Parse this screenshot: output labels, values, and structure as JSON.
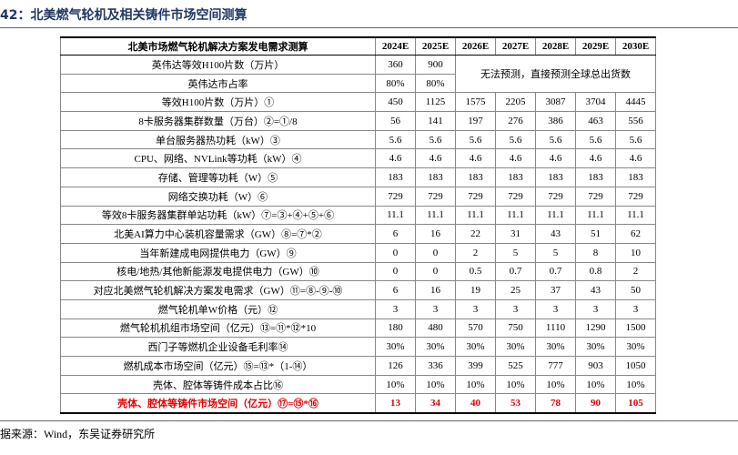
{
  "title": "42：北美燃气轮机及相关铸件市场空间测算",
  "table": {
    "header": [
      "北美市场燃气轮机解决方案发电需求测算",
      "2024E",
      "2025E",
      "2026E",
      "2027E",
      "2028E",
      "2029E",
      "2030E"
    ],
    "merged_note": "无法预测，直接预测全球总出货数",
    "rows": [
      [
        "英伟达等效H100片数（万片）",
        "360",
        "900"
      ],
      [
        "英伟达市占率",
        "80%",
        "80%"
      ],
      [
        "等效H100片数（万片）①",
        "450",
        "1125",
        "1575",
        "2205",
        "3087",
        "3704",
        "4445"
      ],
      [
        "8卡服务器集群数量（万台）②=①/8",
        "56",
        "141",
        "197",
        "276",
        "386",
        "463",
        "556"
      ],
      [
        "单台服务器热功耗（kW）③",
        "5.6",
        "5.6",
        "5.6",
        "5.6",
        "5.6",
        "5.6",
        "5.6"
      ],
      [
        "CPU、网络、NVLink等功耗（kW）④",
        "4.6",
        "4.6",
        "4.6",
        "4.6",
        "4.6",
        "4.6",
        "4.6"
      ],
      [
        "存储、管理等功耗（W）⑤",
        "183",
        "183",
        "183",
        "183",
        "183",
        "183",
        "183"
      ],
      [
        "网络交换功耗（W）⑥",
        "729",
        "729",
        "729",
        "729",
        "729",
        "729",
        "729"
      ],
      [
        "等效8卡服务器集群单站功耗（kW）⑦=③+④+⑤+⑥",
        "11.1",
        "11.1",
        "11.1",
        "11.1",
        "11.1",
        "11.1",
        "11.1"
      ],
      [
        "北美AI算力中心装机容量需求（GW）⑧=⑦*②",
        "6",
        "16",
        "22",
        "31",
        "43",
        "51",
        "62"
      ],
      [
        "当年新建成电网提供电力（GW）⑨",
        "0",
        "0",
        "2",
        "5",
        "5",
        "8",
        "10"
      ],
      [
        "核电/地热/其他新能源发电提供电力（GW）⑩",
        "0",
        "0",
        "0.5",
        "0.7",
        "0.7",
        "0.8",
        "2"
      ],
      [
        "对应北美燃气轮机解决方案发电需求（GW）⑪=⑧-⑨-⑩",
        "6",
        "16",
        "19",
        "25",
        "37",
        "43",
        "50"
      ],
      [
        "燃气轮机单W价格（元）⑫",
        "3",
        "3",
        "3",
        "3",
        "3",
        "3",
        "3"
      ],
      [
        "燃气轮机机组市场空间（亿元）⑬=⑪*⑫*10",
        "180",
        "480",
        "570",
        "750",
        "1110",
        "1290",
        "1500"
      ],
      [
        "西门子等燃机企业设备毛利率⑭",
        "30%",
        "30%",
        "30%",
        "30%",
        "30%",
        "30%",
        "30%"
      ],
      [
        "燃机成本市场空间（亿元）⑮=⑬*（1-⑭）",
        "126",
        "336",
        "399",
        "525",
        "777",
        "903",
        "1050"
      ],
      [
        "壳体、腔体等铸件成本占比⑯",
        "10%",
        "10%",
        "10%",
        "10%",
        "10%",
        "10%",
        "10%"
      ],
      [
        "壳体、腔体等铸件市场空间（亿元）⑰=⑮*⑯",
        "13",
        "34",
        "40",
        "53",
        "78",
        "90",
        "105"
      ]
    ]
  },
  "source": "据来源：Wind，东吴证券研究所"
}
